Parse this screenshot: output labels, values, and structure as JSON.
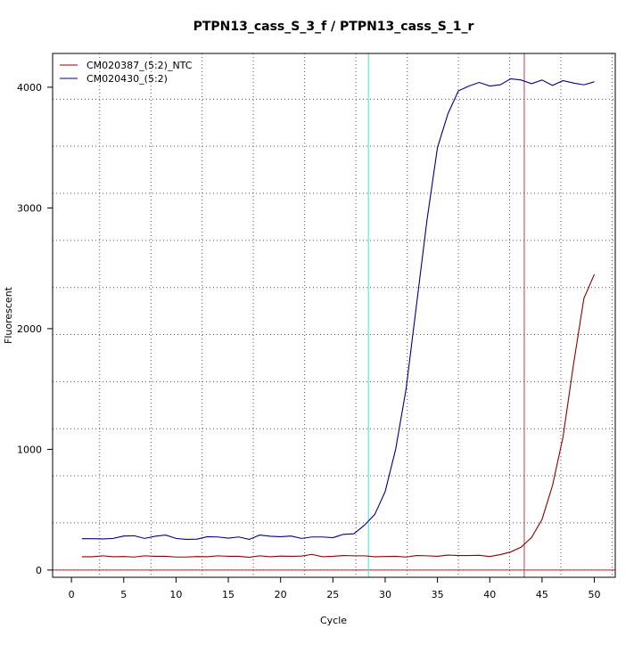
{
  "chart_data": {
    "type": "line",
    "title": "PTPN13_cass_S_3_f / PTPN13_cass_S_1_r",
    "xlabel": "Cycle",
    "ylabel": "Fluorescent",
    "xlim": [
      -1.8,
      52
    ],
    "ylim": [
      -60,
      4280
    ],
    "x_ticks": [
      0,
      5,
      10,
      15,
      20,
      25,
      30,
      35,
      40,
      45,
      50
    ],
    "x_tick_labels": [
      "0",
      "5",
      "10",
      "15",
      "20",
      "25",
      "30",
      "35",
      "40",
      "45",
      "50"
    ],
    "y_ticks": [
      0,
      1000,
      2000,
      3000,
      4000
    ],
    "y_tick_labels": [
      "0",
      "1000",
      "2000",
      "3000",
      "4000"
    ],
    "grid": true,
    "legend_position": "top-left",
    "baseline": {
      "value": 0,
      "color": "#CC2222"
    },
    "threshold_lines": [
      {
        "x": 28.4,
        "color": "#44DDEE"
      },
      {
        "x": 43.3,
        "color": "#BB4444"
      }
    ],
    "x": [
      1,
      2,
      3,
      4,
      5,
      6,
      7,
      8,
      9,
      10,
      11,
      12,
      13,
      14,
      15,
      16,
      17,
      18,
      19,
      20,
      21,
      22,
      23,
      24,
      25,
      26,
      27,
      28,
      29,
      30,
      31,
      32,
      33,
      34,
      35,
      36,
      37,
      38,
      39,
      40,
      41,
      42,
      43,
      44,
      45,
      46,
      47,
      48,
      49,
      50
    ],
    "series": [
      {
        "name": "CM020387_(5:2)_NTC",
        "color": "#8B0000",
        "values": [
          110,
          110,
          118,
          110,
          112,
          108,
          118,
          114,
          114,
          108,
          108,
          112,
          110,
          118,
          114,
          114,
          106,
          118,
          110,
          116,
          114,
          116,
          130,
          110,
          114,
          120,
          118,
          118,
          110,
          112,
          114,
          108,
          120,
          118,
          114,
          124,
          120,
          120,
          122,
          112,
          128,
          150,
          190,
          270,
          420,
          700,
          1100,
          1700,
          2250,
          2450
        ]
      },
      {
        "name": "CM020430_(5:2)",
        "color": "#000080",
        "values": [
          260,
          260,
          258,
          262,
          282,
          284,
          262,
          280,
          290,
          262,
          254,
          256,
          276,
          274,
          264,
          274,
          254,
          290,
          280,
          276,
          282,
          262,
          274,
          274,
          268,
          296,
          300,
          370,
          460,
          650,
          1000,
          1500,
          2200,
          2900,
          3500,
          3780,
          3970,
          4010,
          4040,
          4010,
          4020,
          4070,
          4060,
          4030,
          4060,
          4015,
          4055,
          4035,
          4020,
          4045
        ]
      }
    ]
  }
}
